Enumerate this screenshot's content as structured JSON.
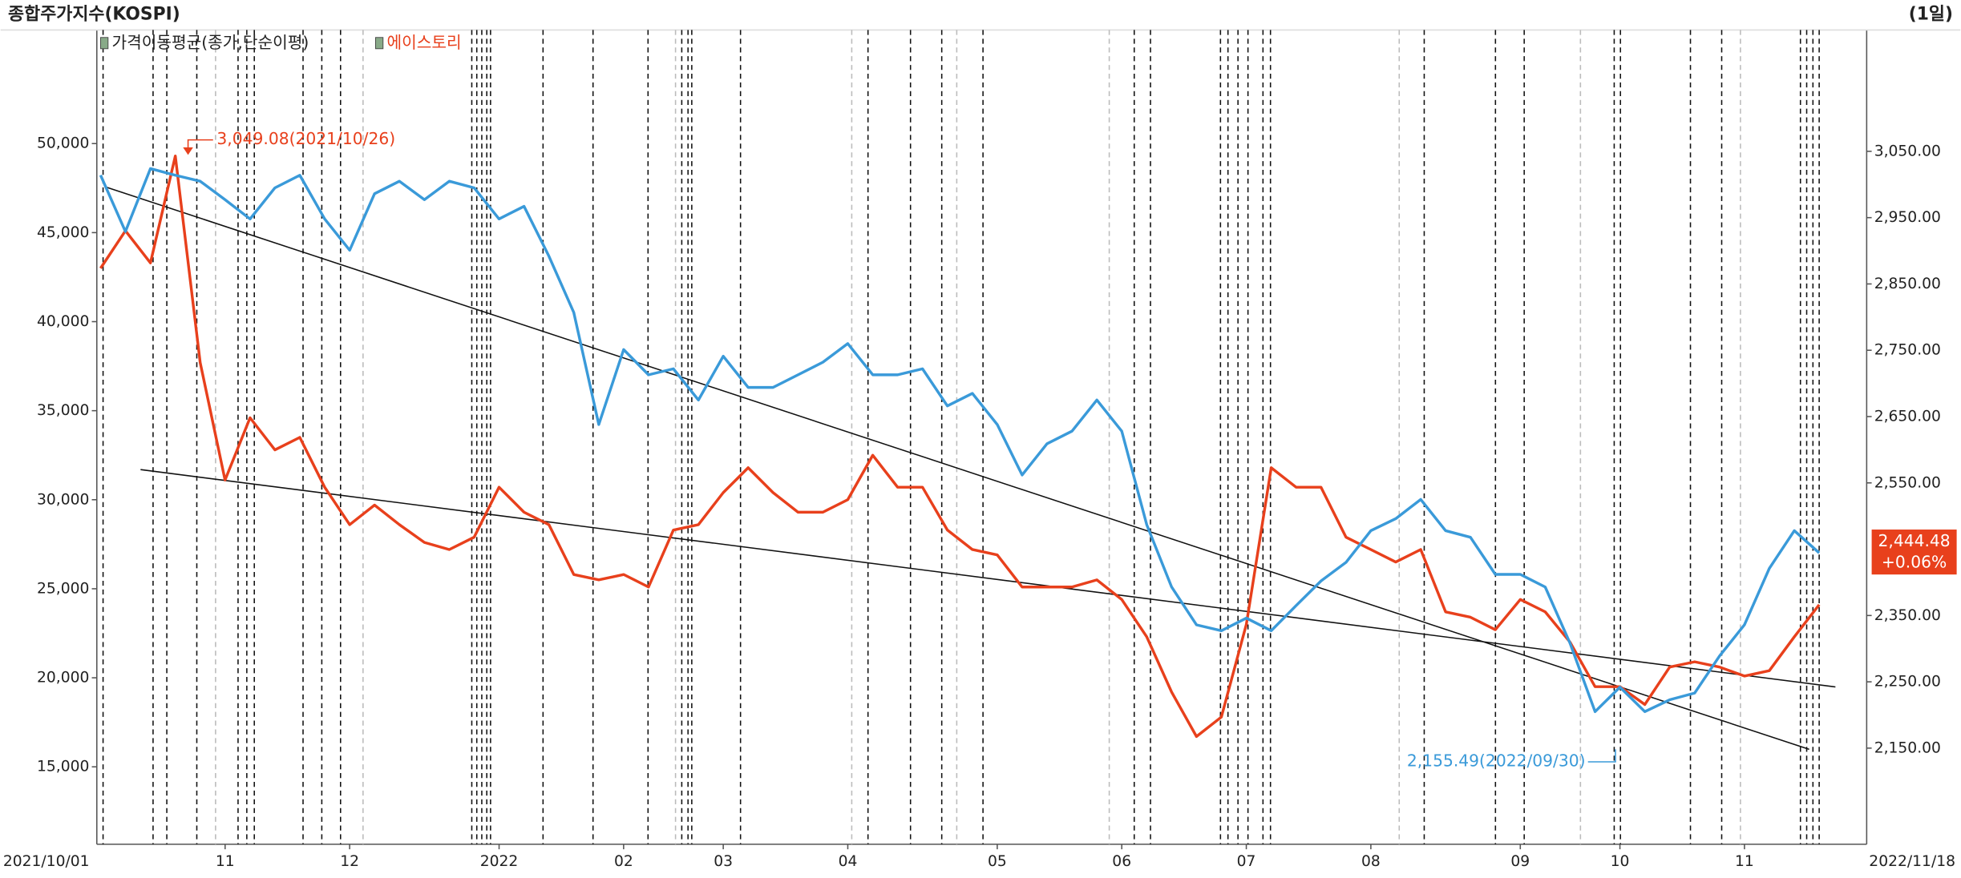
{
  "chart_data": {
    "type": "line",
    "title": "종합주가지수(KOSPI)",
    "period": "(1일)",
    "legend_note": "가격이동평균(종가,단순이평)",
    "categories": [
      "2021/10/01",
      null,
      null,
      null,
      null,
      "11",
      null,
      null,
      null,
      null,
      "12",
      null,
      null,
      null,
      null,
      null,
      "2022",
      null,
      null,
      null,
      null,
      "02",
      null,
      null,
      null,
      "03",
      null,
      null,
      null,
      null,
      "04",
      null,
      null,
      null,
      null,
      null,
      "05",
      null,
      null,
      null,
      null,
      "06",
      null,
      null,
      null,
      null,
      "07",
      null,
      null,
      null,
      null,
      "08",
      null,
      null,
      null,
      null,
      null,
      "09",
      null,
      null,
      null,
      "10",
      null,
      null,
      null,
      null,
      "11",
      null,
      null,
      "2022/11/18"
    ],
    "series": [
      {
        "name": "에이스토리",
        "color": "#e8401c",
        "axis": "y",
        "values": [
          43000,
          45100,
          43300,
          49300,
          37700,
          31100,
          34600,
          32800,
          33500,
          30700,
          28600,
          29700,
          28600,
          27600,
          27200,
          27900,
          30700,
          29300,
          28600,
          25800,
          25500,
          25800,
          25100,
          28300,
          28600,
          30400,
          31800,
          30400,
          29300,
          29300,
          30000,
          32500,
          30700,
          30700,
          28300,
          27200,
          26900,
          25100,
          25100,
          25100,
          25500,
          24400,
          22300,
          19200,
          16700,
          17800,
          23000,
          31800,
          30700,
          30700,
          27900,
          27200,
          26500,
          27200,
          23700,
          23400,
          22700,
          24400,
          23700,
          22000,
          19500,
          19500,
          18500,
          20600,
          20900,
          20600,
          20100,
          20400,
          22300,
          24100
        ]
      },
      {
        "color": "#3a9ad9",
        "axis": "y2",
        "values": [
          3014,
          2929,
          3024,
          3014,
          3005,
          2977,
          2948,
          2995,
          3014,
          2948,
          2901,
          2986,
          3005,
          2977,
          3005,
          2995,
          2948,
          2967,
          2892,
          2807,
          2638,
          2751,
          2713,
          2722,
          2675,
          2741,
          2694,
          2694,
          2713,
          2732,
          2760,
          2713,
          2713,
          2722,
          2666,
          2685,
          2638,
          2562,
          2609,
          2628,
          2675,
          2628,
          2487,
          2393,
          2336,
          2327,
          2346,
          2327,
          2365,
          2402,
          2430,
          2478,
          2496,
          2525,
          2478,
          2468,
          2412,
          2412,
          2393,
          2308,
          2205,
          2242,
          2205,
          2223,
          2233,
          2289,
          2336,
          2421,
          2478,
          2444.48
        ]
      }
    ],
    "ylim": [
      10650,
      56380
    ],
    "yticks": [
      {
        "value": 15000,
        "label": "15,000"
      },
      {
        "value": 20000,
        "label": "20,000"
      },
      {
        "value": 25000,
        "label": "25,000"
      },
      {
        "value": 30000,
        "label": "30,000"
      },
      {
        "value": 35000,
        "label": "35,000"
      },
      {
        "value": 40000,
        "label": "40,000"
      },
      {
        "value": 45000,
        "label": "45,000"
      },
      {
        "value": 50000,
        "label": "50,000"
      }
    ],
    "y2lim": [
      2005,
      3233
    ],
    "y2ticks": [
      {
        "value": 2150,
        "label": "2,150.00"
      },
      {
        "value": 2250,
        "label": "2,250.00"
      },
      {
        "value": 2350,
        "label": "2,350.00"
      },
      {
        "value": 2550,
        "label": "2,550.00"
      },
      {
        "value": 2650,
        "label": "2,650.00"
      },
      {
        "value": 2750,
        "label": "2,750.00"
      },
      {
        "value": 2850,
        "label": "2,850.00"
      },
      {
        "value": 2950,
        "label": "2,950.00"
      },
      {
        "value": 3050,
        "label": "3,050.00"
      }
    ],
    "annotations": [
      "3,049.08(2021/10/26)",
      "2,155.49(2022/09/30)"
    ],
    "last_value_label": "2,444.48",
    "change_label": "+0.06%"
  }
}
